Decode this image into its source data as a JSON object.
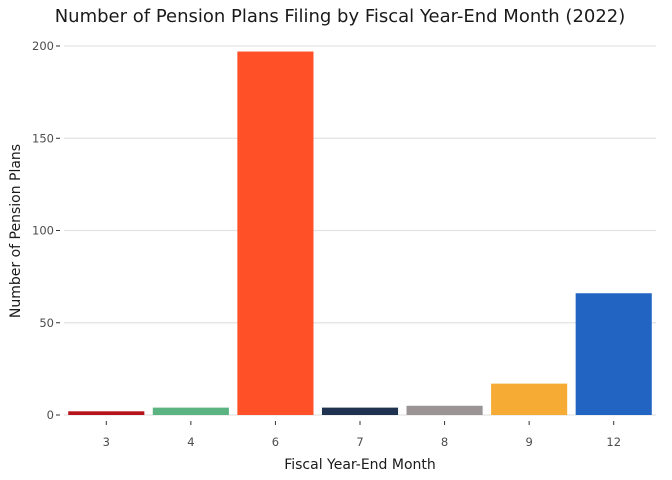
{
  "chart_data": {
    "type": "bar",
    "title": "Number of Pension Plans Filing by Fiscal Year-End Month (2022)",
    "xlabel": "Fiscal Year-End Month",
    "ylabel": "Number of Pension Plans",
    "categories": [
      "3",
      "4",
      "6",
      "7",
      "8",
      "9",
      "12"
    ],
    "values": [
      2,
      4,
      197,
      4,
      5,
      17,
      66
    ],
    "colors": [
      "#B5121B",
      "#5BB381",
      "#FF5027",
      "#1F3250",
      "#9B9494",
      "#F5AB34",
      "#2264C2"
    ],
    "ylim": [
      0,
      200
    ],
    "yticks": [
      0,
      50,
      100,
      150,
      200
    ],
    "grid": true,
    "legend": "none"
  }
}
